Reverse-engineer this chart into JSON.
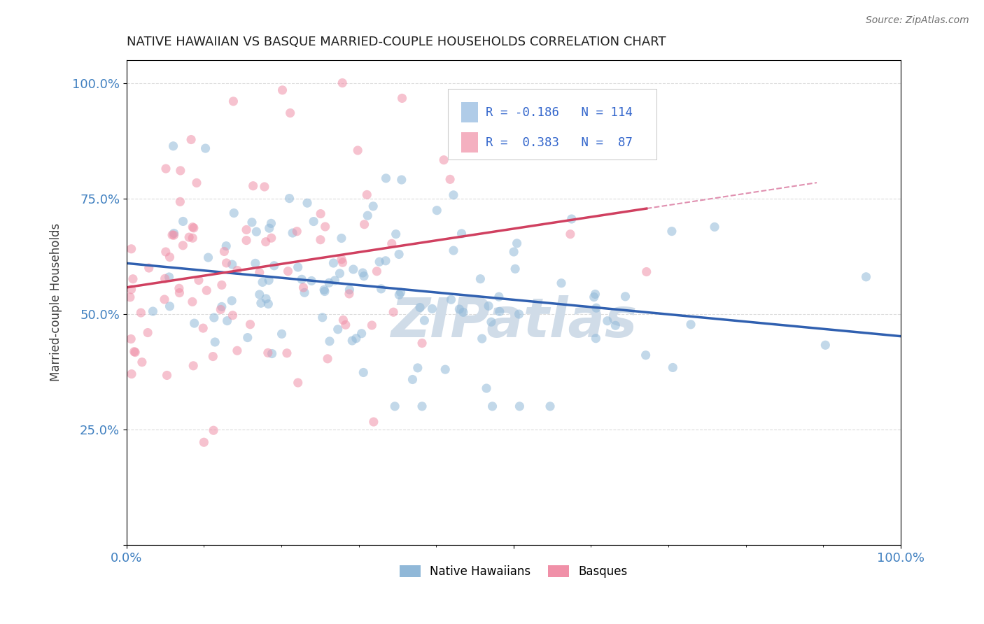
{
  "title": "NATIVE HAWAIIAN VS BASQUE MARRIED-COUPLE HOUSEHOLDS CORRELATION CHART",
  "source": "Source: ZipAtlas.com",
  "ylabel": "Married-couple Households",
  "r_native": -0.186,
  "n_native": 114,
  "r_basque": 0.383,
  "n_basque": 87,
  "scatter_color_native": "#90b8d8",
  "scatter_color_basque": "#f090a8",
  "line_color_native": "#3060b0",
  "line_color_basque": "#d04060",
  "line_color_basque_dashed": "#e090b0",
  "legend_box_color_native": "#b0cce8",
  "legend_box_color_basque": "#f4b0c0",
  "background_color": "#ffffff",
  "grid_color": "#d8d8d8",
  "title_color": "#202020",
  "source_color": "#707070",
  "axis_tick_color": "#4080c0",
  "watermark_color": "#d0dce8",
  "seed_native": 42,
  "seed_basque": 7,
  "xlim": [
    0.0,
    1.0
  ],
  "ylim": [
    0.0,
    1.05
  ],
  "yticks": [
    0.0,
    0.25,
    0.5,
    0.75,
    1.0
  ],
  "ytick_labels": [
    "",
    "25.0%",
    "50.0%",
    "75.0%",
    "100.0%"
  ],
  "xtick_positions": [
    0.0,
    0.5,
    1.0
  ],
  "xtick_labels": [
    "0.0%",
    "",
    "100.0%"
  ]
}
